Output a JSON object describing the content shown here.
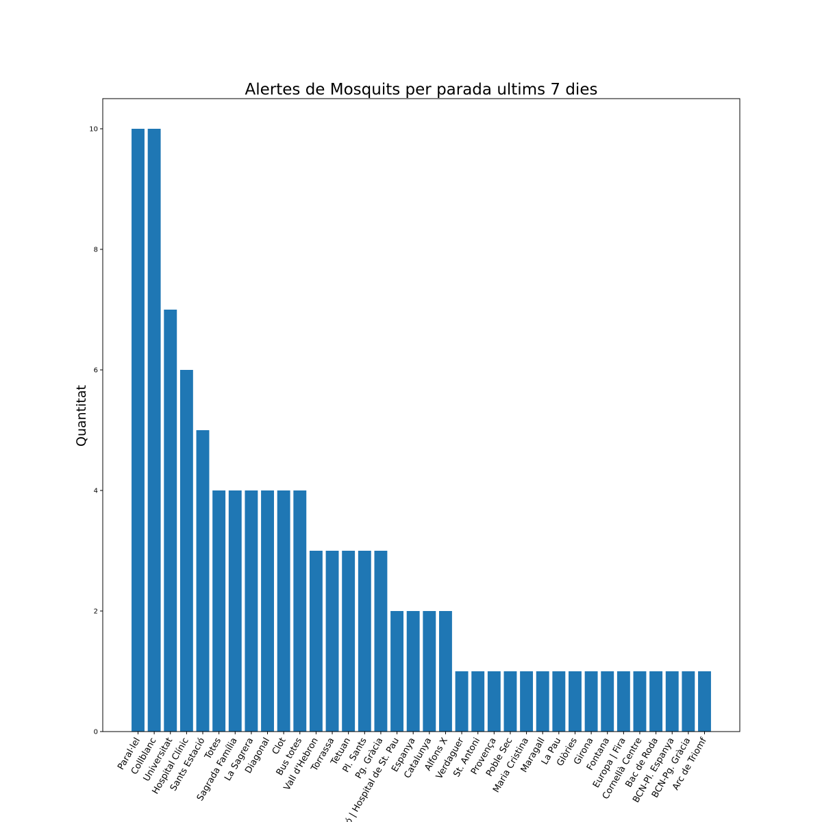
{
  "chart_data": {
    "type": "bar",
    "title": "Alertes de Mosquits per parada ultims 7 dies",
    "xlabel": "",
    "ylabel": "Quantitat",
    "ylim": [
      0,
      10.5
    ],
    "yticks": [
      0,
      2,
      4,
      6,
      8,
      10
    ],
    "grid": false,
    "bar_color": "#1f77b4",
    "categories": [
      "Paral·lel",
      "Collblanc",
      "Universitat",
      "Hospital Clínic",
      "Sants Estació",
      "Totes",
      "Sagrada Família",
      "La Sagrera",
      "Diagonal",
      "Clot",
      "Bus totes",
      "Vall d'Hebron",
      "Torrassa",
      "Tetuan",
      "Pl. Sants",
      "Pg. Gràcia",
      "ó | Hospital de St. Pau",
      "Espanya",
      "Catalunya",
      "Alfons X",
      "Verdaguer",
      "St. Antoni",
      "Provença",
      "Poble Sec",
      "Maria Cristina",
      "Maragall",
      "La Pau",
      "Glòries",
      "Girona",
      "Fontana",
      "Europa | Fira",
      "Cornellà Centre",
      "Bac de Roda",
      "BCN-Pl. Espanya",
      "BCN-Pg. Gràcia",
      "Arc de Triomf"
    ],
    "values": [
      10,
      10,
      7,
      6,
      5,
      4,
      4,
      4,
      4,
      4,
      4,
      3,
      3,
      3,
      3,
      3,
      2,
      2,
      2,
      2,
      1,
      1,
      1,
      1,
      1,
      1,
      1,
      1,
      1,
      1,
      1,
      1,
      1,
      1,
      1,
      1
    ]
  }
}
